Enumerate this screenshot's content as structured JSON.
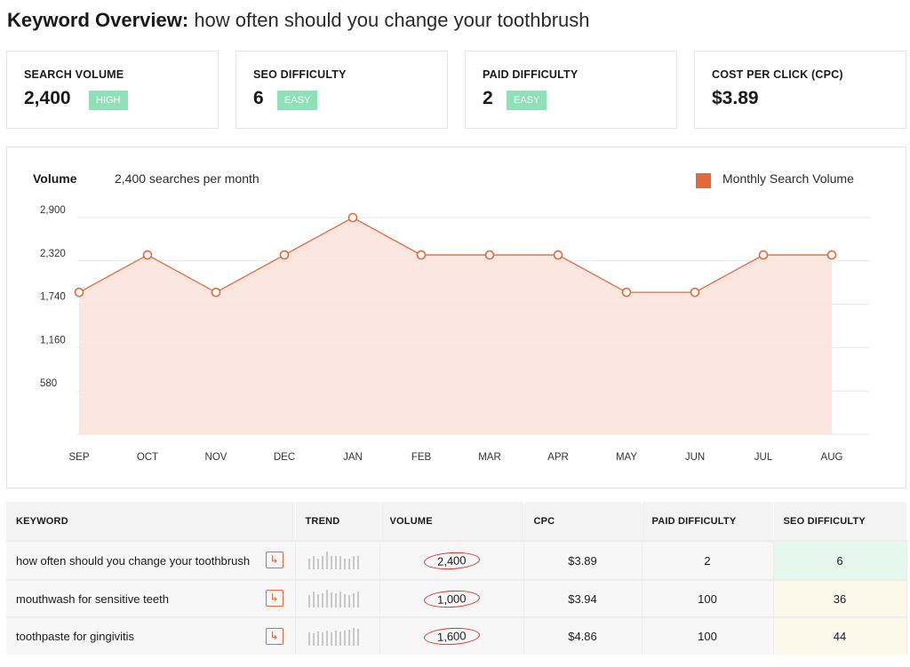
{
  "header": {
    "title_bold": "Keyword Overview:",
    "title_rest": "how often should you change your toothbrush"
  },
  "cards": [
    {
      "label": "SEARCH VOLUME",
      "value": "2,400",
      "badge": "HIGH"
    },
    {
      "label": "SEO DIFFICULTY",
      "value": "6",
      "badge": "EASY"
    },
    {
      "label": "PAID DIFFICULTY",
      "value": "2",
      "badge": "EASY"
    },
    {
      "label": "COST PER CLICK (CPC)",
      "value": "$3.89"
    }
  ],
  "chart": {
    "heading": "Volume",
    "subheading": "2,400 searches per month",
    "legend": "Monthly Search Volume"
  },
  "colors": {
    "accent": "#e4683a",
    "area_fill": "#fbe2da",
    "badge_green": "#8fe0b8"
  },
  "chart_data": {
    "type": "area",
    "title": "Volume",
    "subtitle": "2,400 searches per month",
    "x": [
      "SEP",
      "OCT",
      "NOV",
      "DEC",
      "JAN",
      "FEB",
      "MAR",
      "APR",
      "MAY",
      "JUN",
      "JUL",
      "AUG"
    ],
    "series": [
      {
        "name": "Monthly Search Volume",
        "values": [
          1900,
          2400,
          1900,
          2400,
          2900,
          2400,
          2400,
          2400,
          1900,
          1900,
          2400,
          2400
        ]
      }
    ],
    "y_ticks": [
      "580",
      "1,160",
      "1,740",
      "2,320",
      "2,900"
    ],
    "ylim": [
      0,
      2900
    ],
    "grid": true,
    "legend_position": "top-right"
  },
  "table": {
    "headers": [
      "KEYWORD",
      "TREND",
      "VOLUME",
      "CPC",
      "PAID DIFFICULTY",
      "SEO DIFFICULTY"
    ],
    "rows": [
      {
        "keyword": "how often should you change your toothbrush",
        "volume": "2,400",
        "cpc": "$3.89",
        "paid_difficulty": "2",
        "seo_difficulty": "6",
        "trend": [
          0.6,
          0.75,
          0.6,
          0.75,
          1.0,
          0.75,
          0.75,
          0.75,
          0.6,
          0.6,
          0.75,
          0.75
        ]
      },
      {
        "keyword": "mouthwash for sensitive teeth",
        "volume": "1,000",
        "cpc": "$3.94",
        "paid_difficulty": "100",
        "seo_difficulty": "36",
        "trend": [
          0.7,
          0.9,
          0.75,
          0.8,
          1.0,
          0.85,
          0.8,
          0.9,
          0.75,
          0.7,
          0.8,
          0.9
        ]
      },
      {
        "keyword": "toothpaste for gingivitis",
        "volume": "1,600",
        "cpc": "$4.86",
        "paid_difficulty": "100",
        "seo_difficulty": "44",
        "trend": [
          0.75,
          0.7,
          0.8,
          0.75,
          0.85,
          0.75,
          0.85,
          0.8,
          0.85,
          0.9,
          1.0,
          0.95
        ]
      }
    ]
  }
}
